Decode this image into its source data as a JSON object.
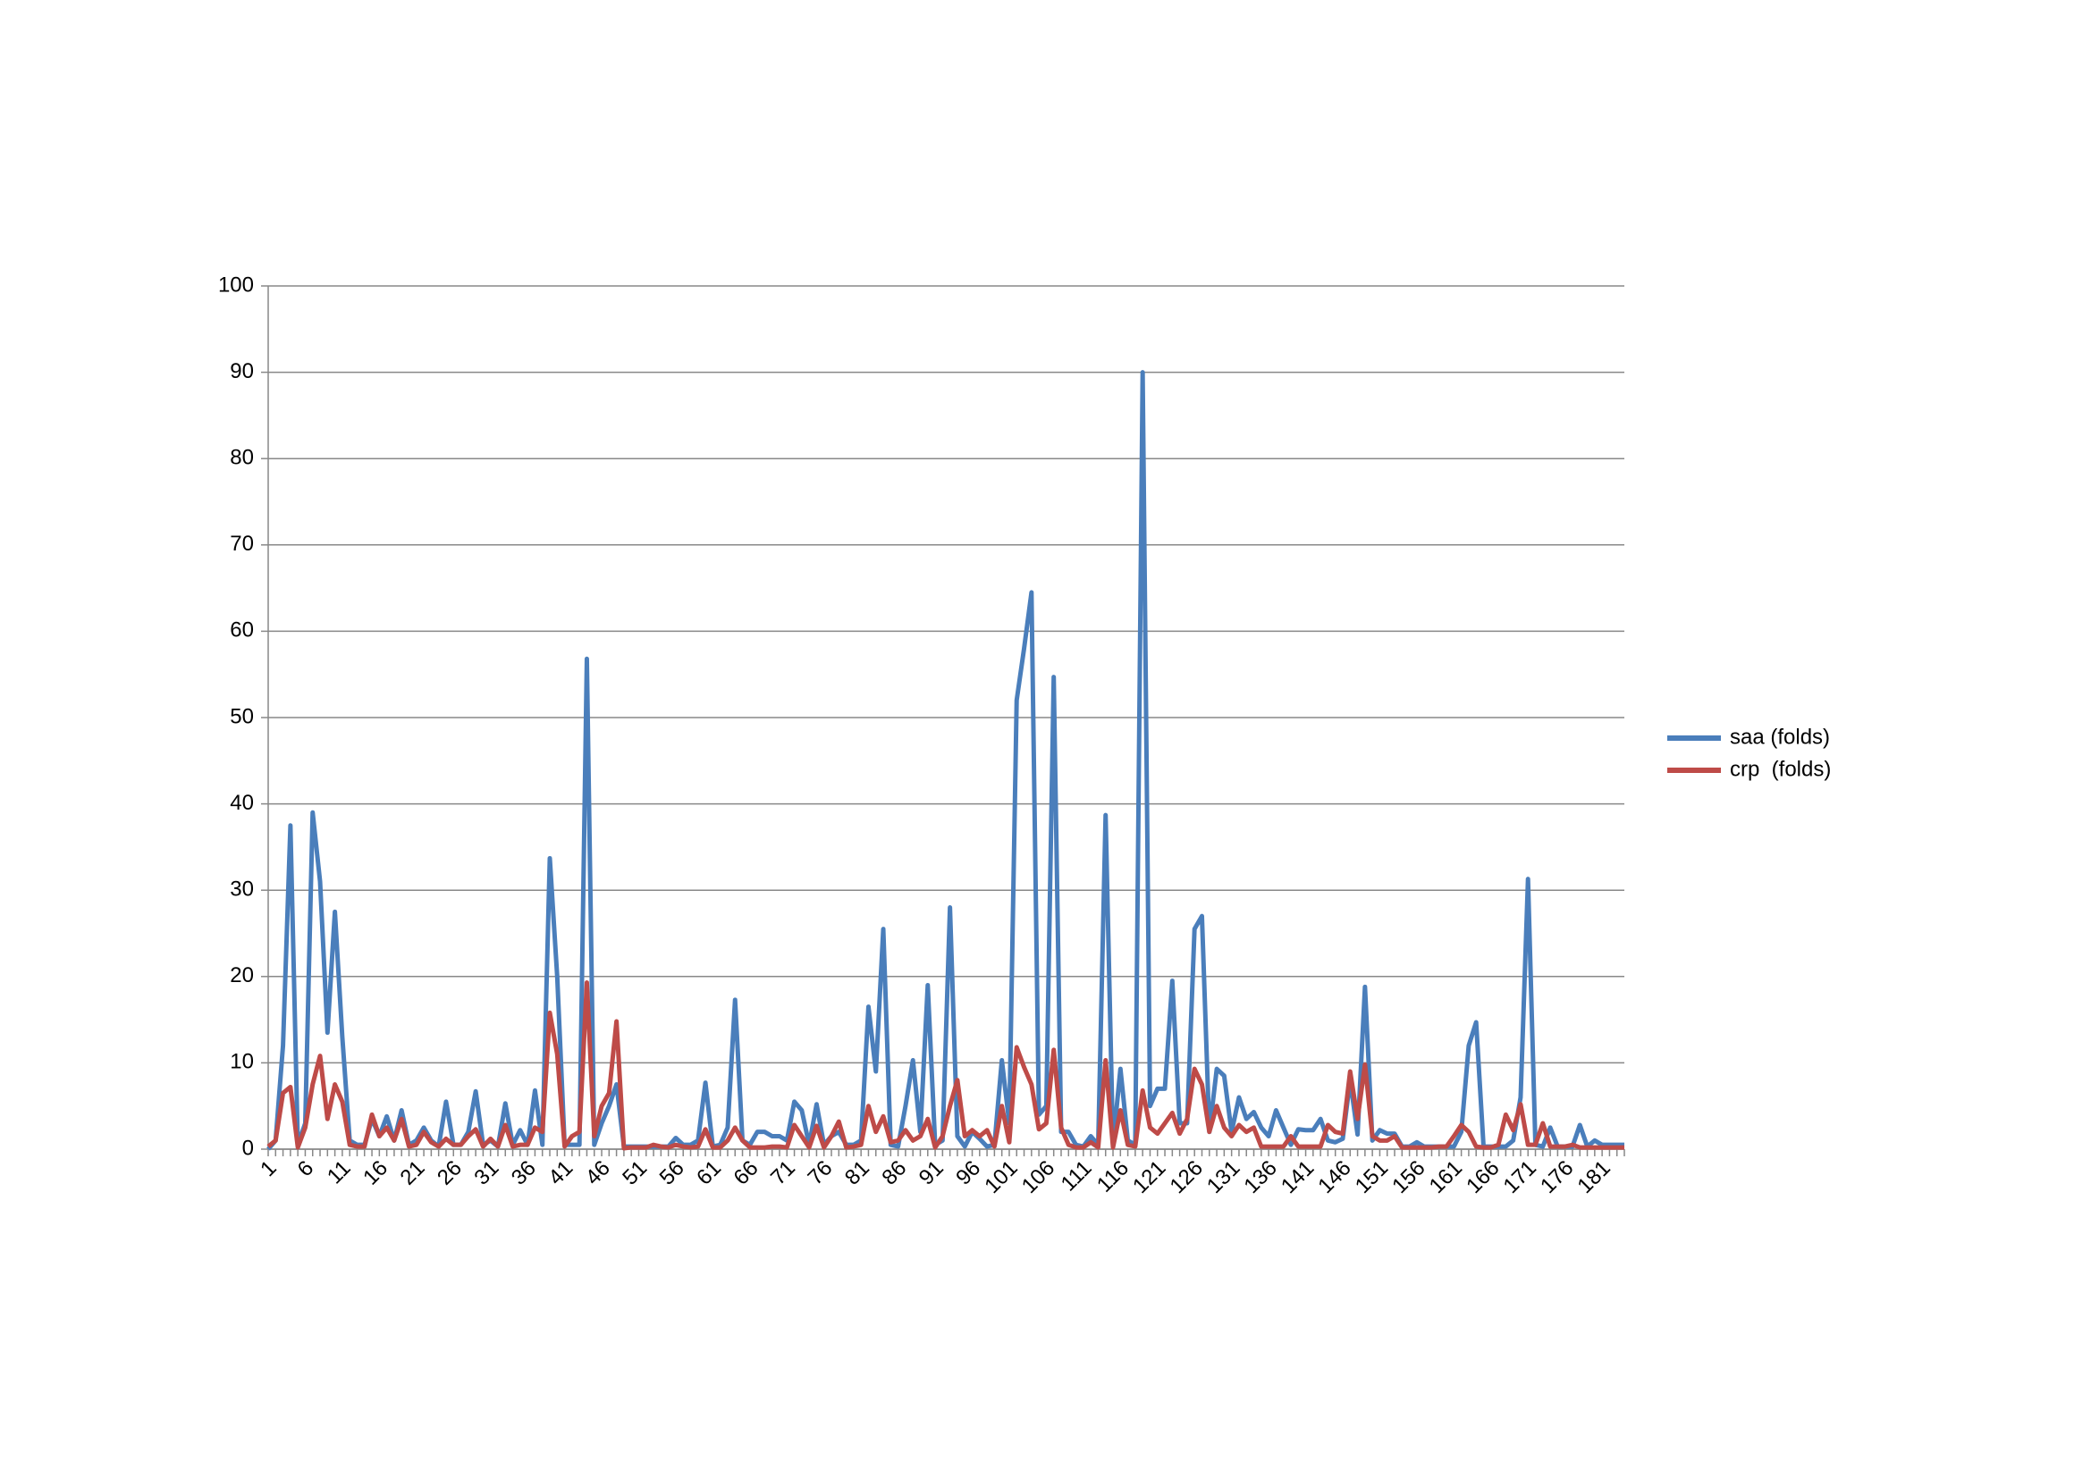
{
  "chart_data": {
    "type": "line",
    "categories": [
      1,
      null,
      null,
      null,
      null,
      6,
      null,
      null,
      null,
      null,
      11,
      null,
      null,
      null,
      null,
      16,
      null,
      null,
      null,
      null,
      21,
      null,
      null,
      null,
      null,
      26,
      null,
      null,
      null,
      null,
      31,
      null,
      null,
      null,
      null,
      36,
      null,
      null,
      null,
      null,
      41,
      null,
      null,
      null,
      null,
      46,
      null,
      null,
      null,
      null,
      51,
      null,
      null,
      null,
      null,
      56,
      null,
      null,
      null,
      null,
      61,
      null,
      null,
      null,
      null,
      66,
      null,
      null,
      null,
      null,
      71,
      null,
      null,
      null,
      null,
      76,
      null,
      null,
      null,
      null,
      81,
      null,
      null,
      null,
      null,
      86,
      null,
      null,
      null,
      null,
      91,
      null,
      null,
      null,
      null,
      96,
      null,
      null,
      null,
      null,
      101,
      null,
      null,
      null,
      null,
      106,
      null,
      null,
      null,
      null,
      111,
      null,
      null,
      null,
      null,
      116,
      null,
      null,
      null,
      null,
      121,
      null,
      null,
      null,
      null,
      126,
      null,
      null,
      null,
      null,
      131,
      null,
      null,
      null,
      null,
      136,
      null,
      null,
      null,
      null,
      141,
      null,
      null,
      null,
      null,
      146,
      null,
      null,
      null,
      null,
      151,
      null,
      null,
      null,
      null,
      156,
      null,
      null,
      null,
      null,
      161,
      null,
      null,
      null,
      null,
      166,
      null,
      null,
      null,
      null,
      171,
      null,
      null,
      null,
      null,
      176,
      null,
      null,
      null,
      null,
      181,
      null,
      null,
      null
    ],
    "series": [
      {
        "name": "saa (folds)",
        "color": "#4a7ebb",
        "values": [
          0,
          1,
          12,
          37.5,
          0.5,
          3,
          39,
          31,
          13.5,
          27.5,
          13,
          1,
          0.5,
          0.5,
          3.5,
          1.5,
          3.8,
          1,
          4.5,
          0.5,
          1,
          2.5,
          1,
          0.3,
          5.5,
          0.5,
          0.5,
          2,
          6.7,
          0.5,
          1,
          0.3,
          5.3,
          0.5,
          2.2,
          0.5,
          6.8,
          0.5,
          33.7,
          20,
          0.5,
          0.5,
          0.5,
          56.8,
          0.5,
          3,
          5,
          7.5,
          0.3,
          0.3,
          0.3,
          0.3,
          0.3,
          0.3,
          0.3,
          1.3,
          0.5,
          0.5,
          1,
          7.7,
          0.3,
          0.5,
          2.5,
          17.3,
          1,
          0.5,
          2,
          2,
          1.5,
          1.5,
          1,
          5.5,
          4.5,
          0.5,
          5.2,
          0.5,
          1.5,
          2,
          0.5,
          0.5,
          1,
          16.5,
          9,
          25.5,
          0.5,
          0.3,
          5,
          10.3,
          2,
          19,
          0.5,
          1,
          28,
          1.5,
          0.3,
          2,
          1.2,
          0.3,
          0.5,
          10.3,
          3,
          52,
          58,
          64.5,
          4,
          5,
          54.7,
          2,
          2,
          0.5,
          0.3,
          1.5,
          0.5,
          38.7,
          0.5,
          9.3,
          1,
          0.5,
          90,
          5,
          7,
          7,
          19.5,
          3,
          3,
          25.5,
          27,
          2,
          9.3,
          8.5,
          2,
          6,
          3.5,
          4.3,
          2.5,
          1.5,
          4.5,
          2.5,
          0.5,
          2.3,
          2.2,
          2.2,
          3.5,
          1,
          0.8,
          1.2,
          8,
          1.7,
          18.8,
          1,
          2.2,
          1.8,
          1.8,
          0.3,
          0.3,
          0.8,
          0.3,
          0.3,
          0.3,
          0.3,
          0.3,
          2,
          12,
          14.7,
          0.3,
          0.3,
          0.3,
          0.3,
          1,
          6,
          31.3,
          0.5,
          0.3,
          2.5,
          0.3,
          0.3,
          0.3,
          2.8,
          0.3,
          1,
          0.5,
          0.5,
          0.5,
          0.5
        ]
      },
      {
        "name": "crp  (folds)",
        "color": "#be4b48",
        "values": [
          0.3,
          1,
          6.5,
          7.2,
          0.2,
          2.5,
          7.5,
          10.8,
          3.5,
          7.5,
          5.5,
          0.5,
          0.3,
          0.3,
          4,
          1.5,
          2.5,
          1,
          3.5,
          0.3,
          0.5,
          2,
          0.8,
          0.3,
          1.2,
          0.5,
          0.5,
          1.5,
          2.3,
          0.3,
          1.2,
          0.3,
          2.8,
          0.3,
          0.5,
          0.5,
          2.5,
          2,
          15.8,
          11,
          0.3,
          1.5,
          2,
          19.3,
          1.5,
          5,
          6.5,
          14.8,
          0.1,
          0.2,
          0.2,
          0.2,
          0.5,
          0.3,
          0.2,
          0.5,
          0.3,
          0.2,
          0.3,
          2.3,
          0.2,
          0.2,
          1,
          2.5,
          1,
          0.2,
          0.2,
          0.2,
          0.3,
          0.3,
          0.2,
          2.8,
          1.5,
          0.2,
          2.7,
          0.2,
          1.5,
          3.2,
          0.2,
          0.3,
          0.5,
          5,
          2,
          3.8,
          0.8,
          1,
          2.2,
          1,
          1.5,
          3.5,
          0.2,
          1.5,
          5,
          8,
          1.5,
          2.2,
          1.5,
          2.2,
          0.3,
          5,
          0.8,
          11.8,
          9.5,
          7.5,
          2.3,
          3,
          11.5,
          2.5,
          0.5,
          0.2,
          0.2,
          0.8,
          0.2,
          10.3,
          0.2,
          4.5,
          0.5,
          0.3,
          6.8,
          2.5,
          1.8,
          3,
          4.2,
          1.8,
          3.5,
          9.3,
          7.5,
          2,
          5,
          2.5,
          1.5,
          2.8,
          2,
          2.5,
          0.3,
          0.3,
          0.3,
          0.3,
          1.5,
          0.3,
          0.3,
          0.3,
          0.3,
          2.8,
          2,
          1.8,
          9,
          3.5,
          9.8,
          1.5,
          1,
          1,
          1.5,
          0.2,
          0.2,
          0.2,
          0.2,
          0.2,
          0.3,
          0.3,
          1.5,
          2.8,
          2,
          0.3,
          0.2,
          0.2,
          0.5,
          4,
          2.2,
          5.2,
          0.5,
          0.5,
          3,
          0.3,
          0.3,
          0.3,
          0.5,
          0.2,
          0.2,
          0.2,
          0.2,
          0.2,
          0.2,
          0.2
        ]
      }
    ],
    "ylim": [
      0,
      100
    ],
    "yticks": [
      0,
      10,
      20,
      30,
      40,
      50,
      60,
      70,
      80,
      90,
      100
    ],
    "grid": true,
    "legend": "right"
  }
}
